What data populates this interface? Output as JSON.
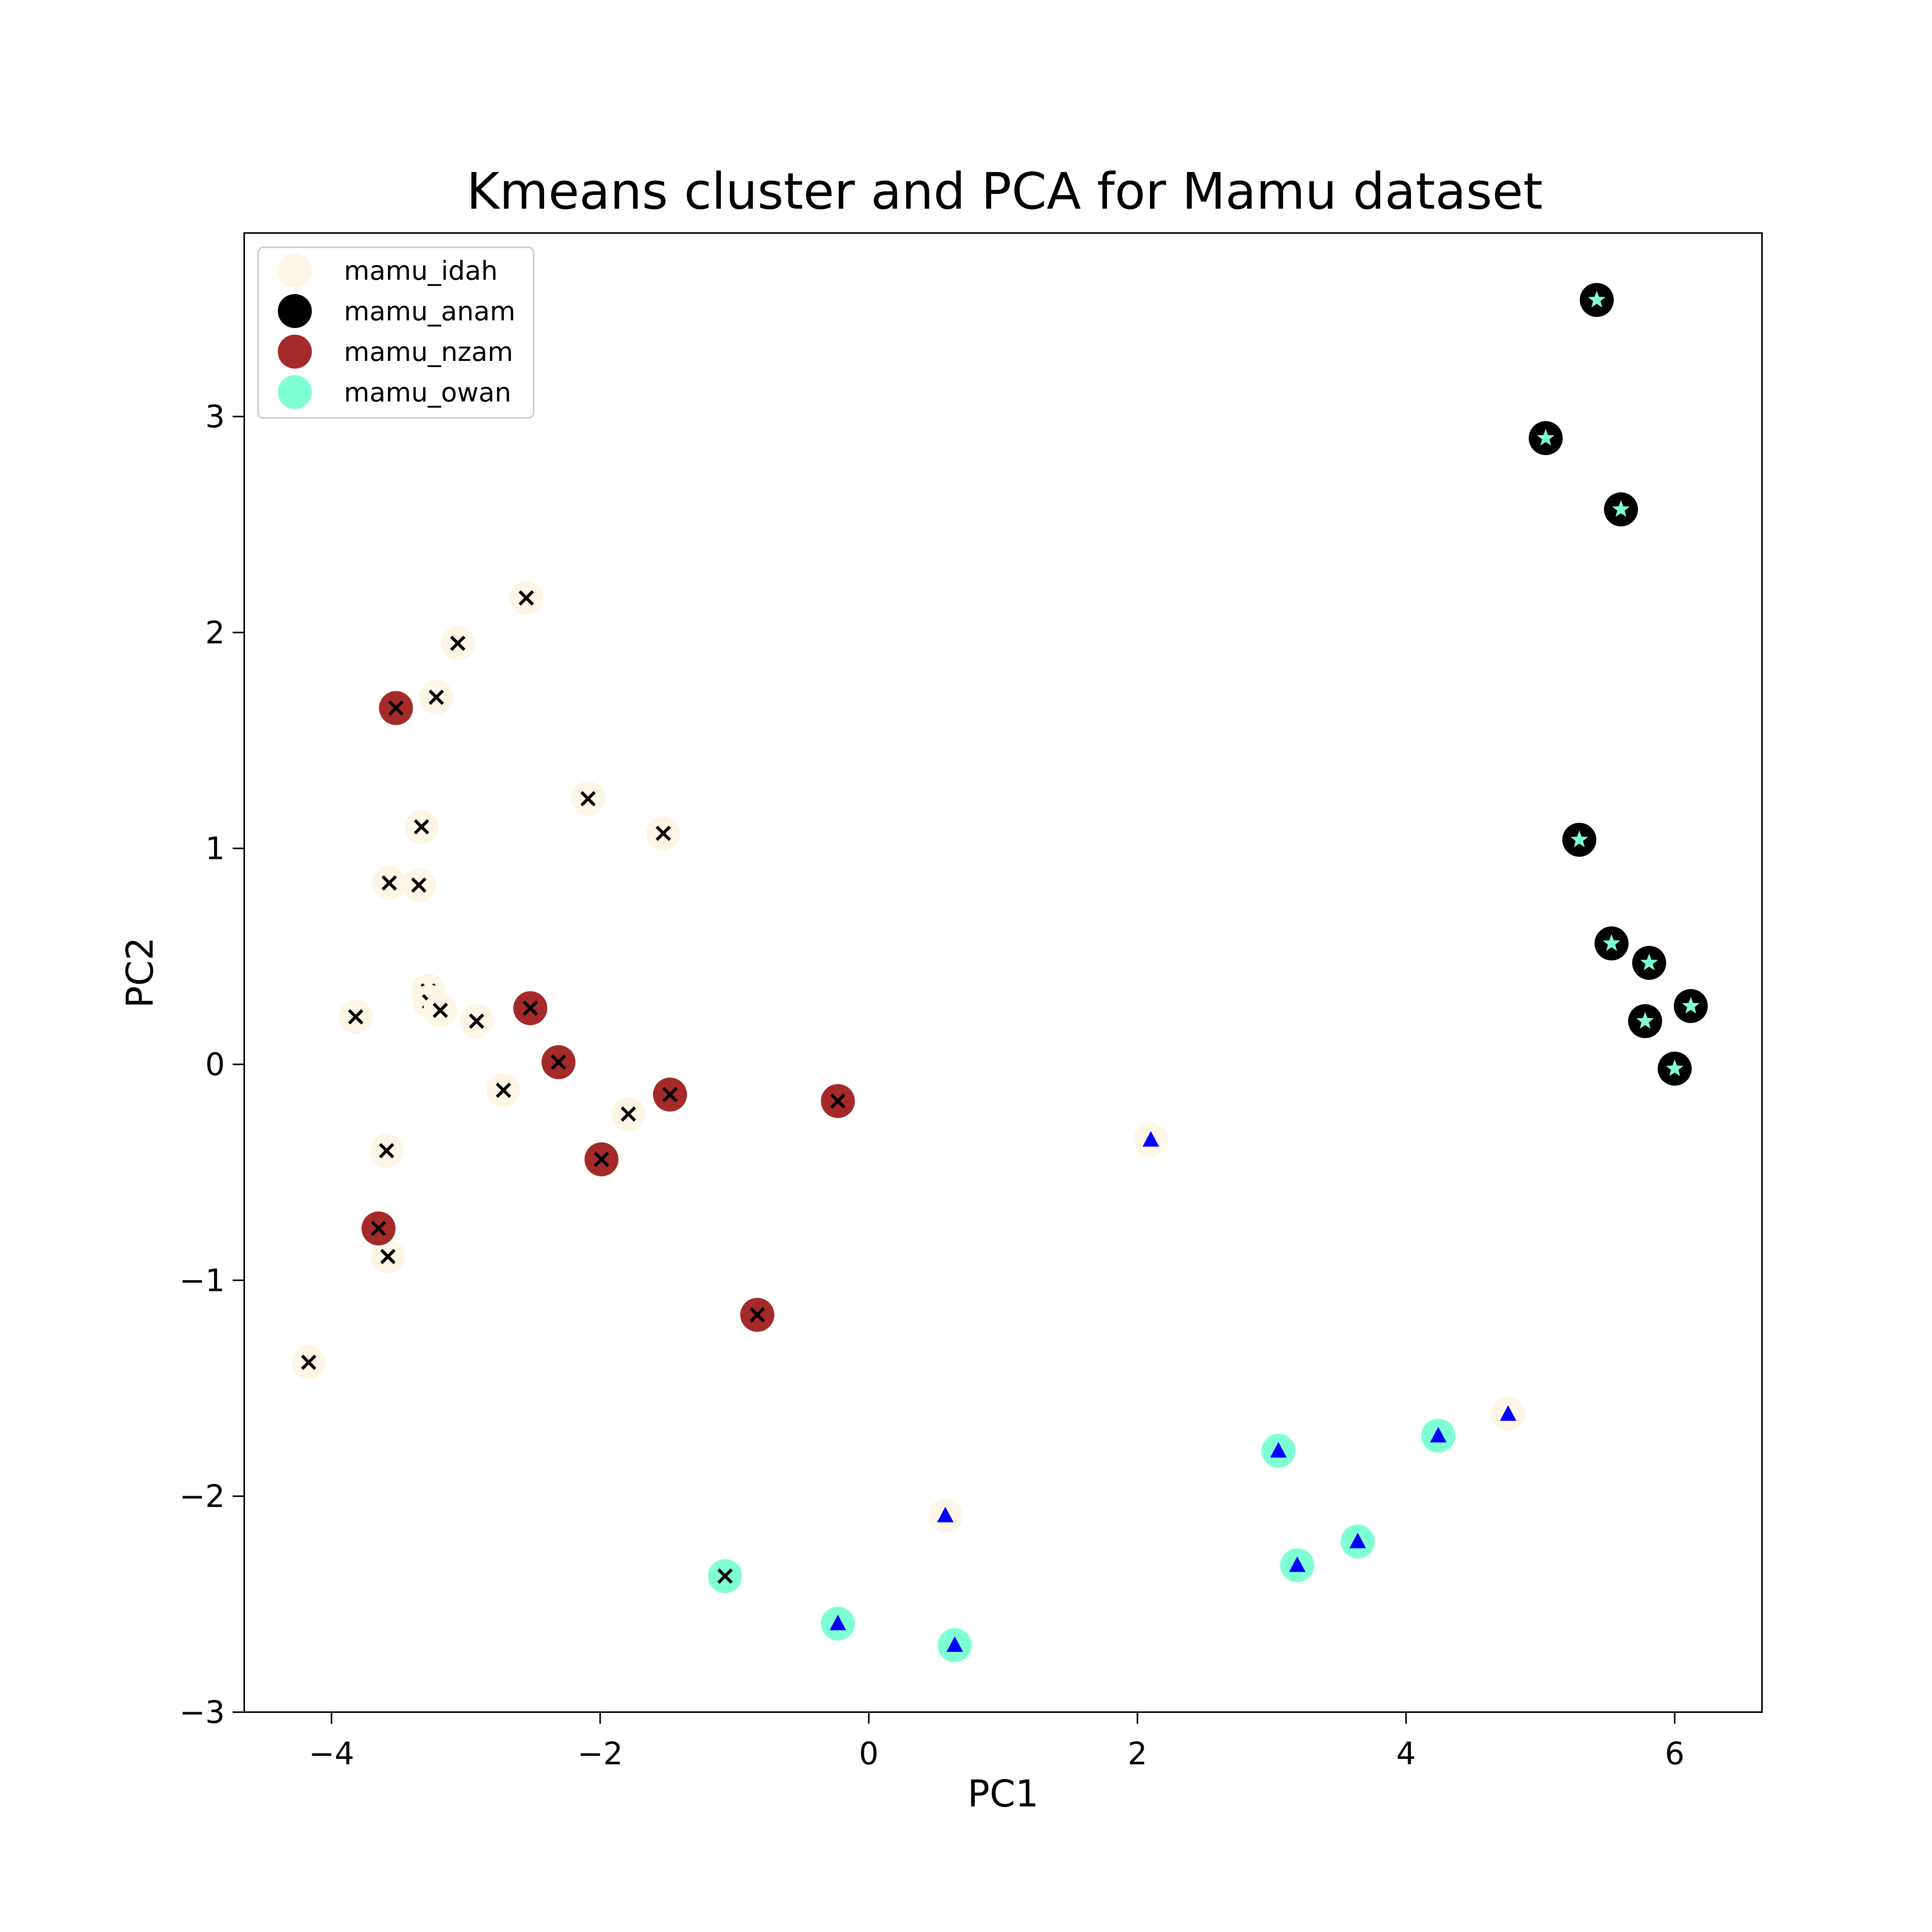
{
  "chart_data": {
    "type": "scatter",
    "title": "Kmeans cluster and PCA for Mamu dataset",
    "xlabel": "PC1",
    "ylabel": "PC2",
    "xlim": [
      -4.65,
      6.65
    ],
    "ylim": [
      -3.0,
      3.85
    ],
    "xticks": [
      -4,
      -2,
      0,
      2,
      4,
      6
    ],
    "yticks": [
      -3,
      -2,
      -1,
      0,
      1,
      2,
      3
    ],
    "xtick_labels": [
      "−4",
      "−2",
      "0",
      "2",
      "4",
      "6"
    ],
    "ytick_labels": [
      "−3",
      "−2",
      "−1",
      "0",
      "1",
      "2",
      "3"
    ],
    "grid": false,
    "legend_position": "top-left",
    "series": [
      {
        "name": "mamu_idah",
        "color": "#fdf5e6",
        "points": [
          {
            "x": -2.55,
            "y": 2.16,
            "m": "x"
          },
          {
            "x": -3.06,
            "y": 1.95,
            "m": "x"
          },
          {
            "x": -3.22,
            "y": 1.7,
            "m": "x"
          },
          {
            "x": -2.09,
            "y": 1.23,
            "m": "x"
          },
          {
            "x": -1.53,
            "y": 1.07,
            "m": "x"
          },
          {
            "x": -3.33,
            "y": 1.1,
            "m": "x"
          },
          {
            "x": -3.57,
            "y": 0.84,
            "m": "x"
          },
          {
            "x": -3.35,
            "y": 0.83,
            "m": "x"
          },
          {
            "x": -3.28,
            "y": 0.34,
            "m": "x"
          },
          {
            "x": -3.27,
            "y": 0.29,
            "m": "x"
          },
          {
            "x": -3.19,
            "y": 0.25,
            "m": "x"
          },
          {
            "x": -3.82,
            "y": 0.22,
            "m": "x"
          },
          {
            "x": -2.92,
            "y": 0.2,
            "m": "x"
          },
          {
            "x": -2.72,
            "y": -0.12,
            "m": "x"
          },
          {
            "x": -1.79,
            "y": -0.23,
            "m": "x"
          },
          {
            "x": -3.59,
            "y": -0.4,
            "m": "x"
          },
          {
            "x": -3.58,
            "y": -0.89,
            "m": "x"
          },
          {
            "x": -4.17,
            "y": -1.38,
            "m": "x"
          },
          {
            "x": 2.1,
            "y": -0.35,
            "m": "triangle"
          },
          {
            "x": 4.76,
            "y": -1.62,
            "m": "triangle"
          },
          {
            "x": 0.57,
            "y": -2.09,
            "m": "triangle"
          }
        ]
      },
      {
        "name": "mamu_anam",
        "color": "#000000",
        "points": [
          {
            "x": 5.42,
            "y": 3.54,
            "m": "star"
          },
          {
            "x": 5.04,
            "y": 2.9,
            "m": "star"
          },
          {
            "x": 5.6,
            "y": 2.57,
            "m": "star"
          },
          {
            "x": 5.29,
            "y": 1.04,
            "m": "star"
          },
          {
            "x": 5.53,
            "y": 0.56,
            "m": "star"
          },
          {
            "x": 5.81,
            "y": 0.47,
            "m": "star"
          },
          {
            "x": 6.12,
            "y": 0.27,
            "m": "star"
          },
          {
            "x": 5.78,
            "y": 0.2,
            "m": "star"
          },
          {
            "x": 6.0,
            "y": -0.02,
            "m": "star"
          }
        ]
      },
      {
        "name": "mamu_nzam",
        "color": "#a52a2a",
        "points": [
          {
            "x": -3.52,
            "y": 1.65,
            "m": "x"
          },
          {
            "x": -2.52,
            "y": 0.26,
            "m": "x"
          },
          {
            "x": -2.31,
            "y": 0.01,
            "m": "x"
          },
          {
            "x": -1.48,
            "y": -0.14,
            "m": "x"
          },
          {
            "x": -0.23,
            "y": -0.17,
            "m": "x"
          },
          {
            "x": -1.99,
            "y": -0.44,
            "m": "x"
          },
          {
            "x": -3.65,
            "y": -0.76,
            "m": "x"
          },
          {
            "x": -0.83,
            "y": -1.16,
            "m": "x"
          }
        ]
      },
      {
        "name": "mamu_owan",
        "color": "#7fffd4",
        "points": [
          {
            "x": -1.07,
            "y": -2.37,
            "m": "x"
          },
          {
            "x": -0.23,
            "y": -2.59,
            "m": "triangle"
          },
          {
            "x": 0.64,
            "y": -2.69,
            "m": "triangle"
          },
          {
            "x": 3.05,
            "y": -1.79,
            "m": "triangle"
          },
          {
            "x": 4.24,
            "y": -1.72,
            "m": "triangle"
          },
          {
            "x": 3.19,
            "y": -2.32,
            "m": "triangle"
          },
          {
            "x": 3.64,
            "y": -2.21,
            "m": "triangle"
          }
        ]
      }
    ],
    "marker_colors": {
      "x": "#000000",
      "triangle": "#0000ff",
      "star": "#7fffd4"
    }
  }
}
